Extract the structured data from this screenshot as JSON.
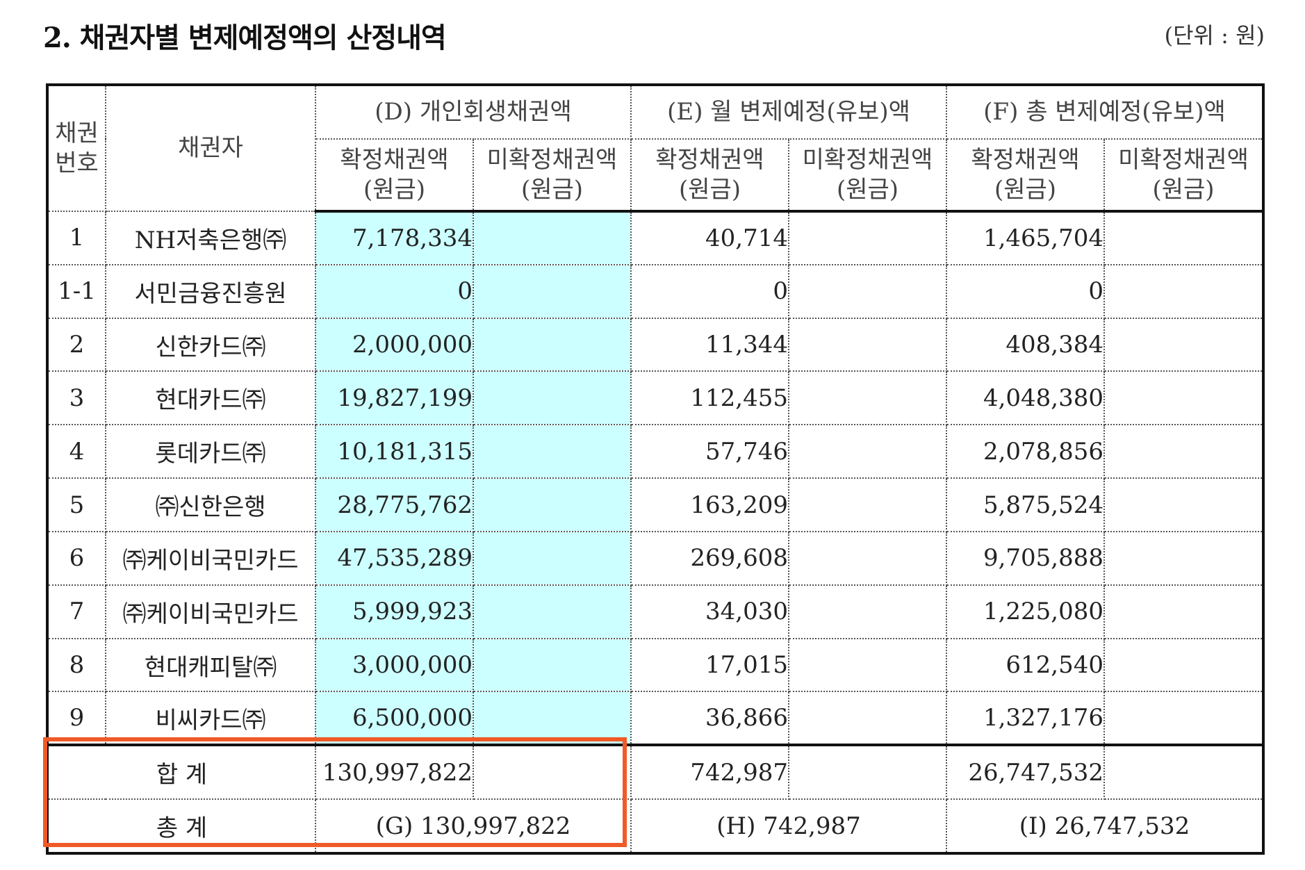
{
  "title": "2. 채권자별 변제예정액의 산정내역",
  "unit": "(단위 : 원)",
  "headers": {
    "no_line1": "채권",
    "no_line2": "번호",
    "creditor": "채권자",
    "group_d": "(D) 개인회생채권액",
    "group_e": "(E) 월 변제예정(유보)액",
    "group_f": "(F) 총 변제예정(유보)액",
    "confirmed_line1": "확정채권액",
    "unconfirmed_line1": "미확정채권액",
    "principal_line2": "(원금)"
  },
  "rows": [
    {
      "no": "1",
      "creditor": "NH저축은행㈜",
      "d_confirmed": "7,178,334",
      "e_confirmed": "40,714",
      "f_confirmed": "1,465,704"
    },
    {
      "no": "1-1",
      "creditor": "서민금융진흥원",
      "d_confirmed": "0",
      "e_confirmed": "0",
      "f_confirmed": "0"
    },
    {
      "no": "2",
      "creditor": "신한카드㈜",
      "d_confirmed": "2,000,000",
      "e_confirmed": "11,344",
      "f_confirmed": "408,384"
    },
    {
      "no": "3",
      "creditor": "현대카드㈜",
      "d_confirmed": "19,827,199",
      "e_confirmed": "112,455",
      "f_confirmed": "4,048,380"
    },
    {
      "no": "4",
      "creditor": "롯데카드㈜",
      "d_confirmed": "10,181,315",
      "e_confirmed": "57,746",
      "f_confirmed": "2,078,856"
    },
    {
      "no": "5",
      "creditor": "㈜신한은행",
      "d_confirmed": "28,775,762",
      "e_confirmed": "163,209",
      "f_confirmed": "5,875,524"
    },
    {
      "no": "6",
      "creditor": "㈜케이비국민카드",
      "d_confirmed": "47,535,289",
      "e_confirmed": "269,608",
      "f_confirmed": "9,705,888"
    },
    {
      "no": "7",
      "creditor": "㈜케이비국민카드",
      "d_confirmed": "5,999,923",
      "e_confirmed": "34,030",
      "f_confirmed": "1,225,080"
    },
    {
      "no": "8",
      "creditor": "현대캐피탈㈜",
      "d_confirmed": "3,000,000",
      "e_confirmed": "17,015",
      "f_confirmed": "612,540"
    },
    {
      "no": "9",
      "creditor": "비씨카드㈜",
      "d_confirmed": "6,500,000",
      "e_confirmed": "36,866",
      "f_confirmed": "1,327,176"
    }
  ],
  "sum": {
    "label": "합 계",
    "d_confirmed": "130,997,822",
    "e_confirmed": "742,987",
    "f_confirmed": "26,747,532"
  },
  "total": {
    "label": "총 계",
    "g": "(G) 130,997,822",
    "h": "(H) 742,987",
    "i": "(I) 26,747,532"
  },
  "colors": {
    "highlight_border": "#f05a28",
    "d_column_fill": "#ccffff"
  }
}
